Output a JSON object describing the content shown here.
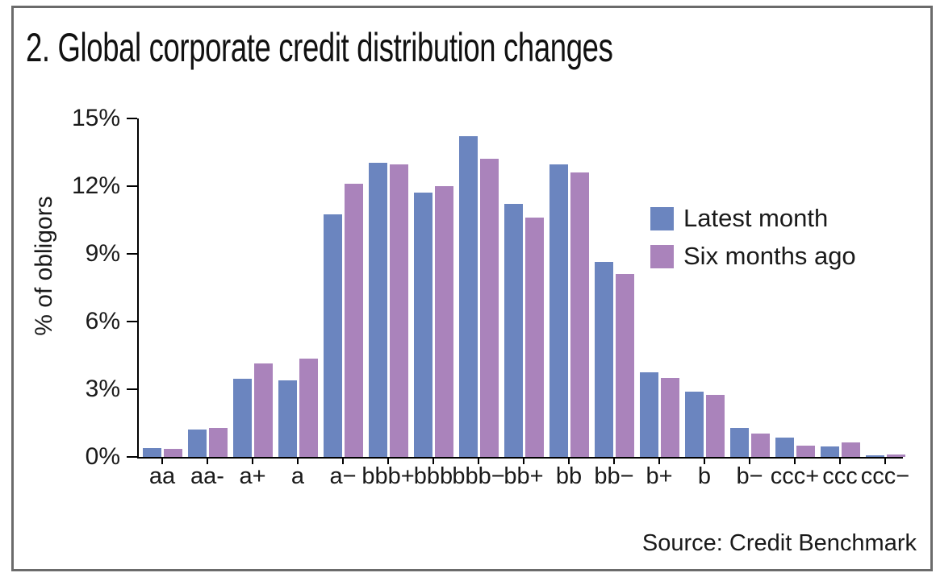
{
  "title": "2. Global corporate credit distribution changes",
  "source": "Source: Credit Benchmark",
  "chart_data": {
    "type": "bar",
    "title": "2. Global corporate credit distribution changes",
    "ylabel": "% of obligors",
    "xlabel": "",
    "ylim": [
      0,
      15
    ],
    "yticks": [
      "0%",
      "3%",
      "6%",
      "9%",
      "12%",
      "15%"
    ],
    "ytick_values": [
      0,
      3,
      6,
      9,
      12,
      15
    ],
    "grid": false,
    "legend_position": "right-middle",
    "axis_color": "#000000",
    "categories": [
      "aa",
      "aa-",
      "a+",
      "a",
      "a−",
      "bbb+",
      "bbb",
      "bbb−",
      "bb+",
      "bb",
      "bb−",
      "b+",
      "b",
      "b−",
      "ccc+",
      "ccc",
      "ccc−"
    ],
    "series": [
      {
        "name": "Latest month",
        "color": "#6b85bf",
        "values": [
          0.4,
          1.2,
          3.45,
          3.4,
          10.75,
          13.05,
          11.7,
          14.2,
          11.2,
          12.95,
          8.65,
          3.75,
          2.9,
          1.3,
          0.85,
          0.45,
          0.06
        ]
      },
      {
        "name": "Six months ago",
        "color": "#aa83bb",
        "values": [
          0.35,
          1.3,
          4.15,
          4.35,
          12.1,
          12.95,
          12.0,
          13.2,
          10.6,
          12.6,
          8.1,
          3.5,
          2.75,
          1.05,
          0.5,
          0.65,
          0.1
        ]
      }
    ],
    "source": "Source: Credit Benchmark"
  }
}
